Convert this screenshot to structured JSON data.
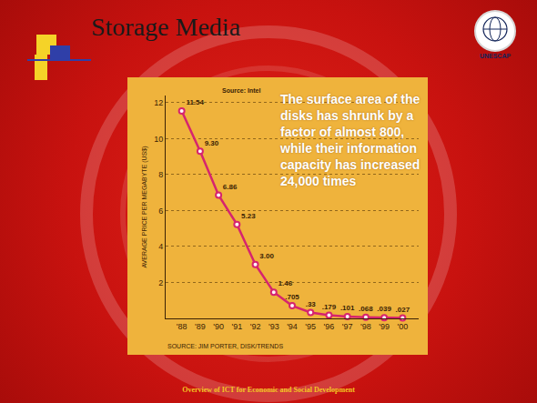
{
  "slide": {
    "title": "Storage Media",
    "logo": "UNESCAP",
    "footer": "Overview of ICT for Economic and Social Development"
  },
  "chart_data": {
    "type": "line",
    "ylabel": "AVERAGE PRICE PER MEGABYTE (US$)",
    "annotations": [
      "Source: Intel",
      "The surface area of the disks has shrunk by a factor of almost 800, while their information capacity has increased 24,000 times",
      "SOURCE: JIM PORTER, DISK/TRENDS"
    ],
    "categories": [
      "'88",
      "'89",
      "'90",
      "'91",
      "'92",
      "'93",
      "'94",
      "'95",
      "'96",
      "'97",
      "'98",
      "'99",
      "'00"
    ],
    "values": [
      11.54,
      9.3,
      6.86,
      5.23,
      3.0,
      1.46,
      0.705,
      0.33,
      0.179,
      0.101,
      0.068,
      0.039,
      0.027
    ],
    "value_labels": [
      "11.54",
      "9.30",
      "6.86",
      "5.23",
      "3.00",
      "1.46",
      ".705",
      ".33",
      ".179",
      ".101",
      ".068",
      ".039",
      ".027"
    ],
    "color": "#d6246e",
    "marker": "circle",
    "ylim": [
      0,
      12.4
    ],
    "yticks": [
      2,
      4,
      6,
      8,
      10,
      12
    ],
    "grid": true,
    "data_labels": true
  }
}
